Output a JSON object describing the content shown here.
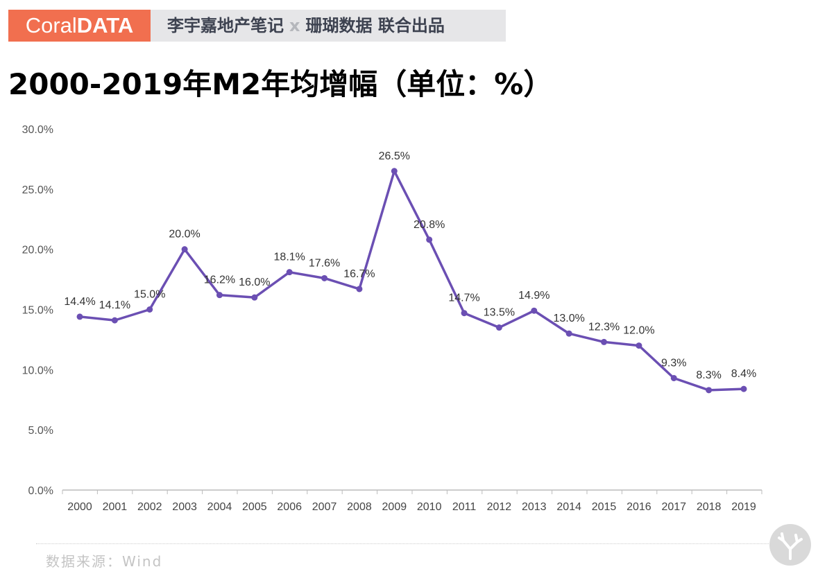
{
  "header": {
    "brand_light": "Coral",
    "brand_bold": "DATA",
    "partner_left": "李宇嘉地产笔记",
    "separator": "x",
    "partner_right": "珊瑚数据 联合出品"
  },
  "footer": {
    "source": "数据来源：Wind"
  },
  "colors": {
    "line": "#6b4fb3",
    "brand": "#f16f4f",
    "banner": "#e6e6e8"
  },
  "chart_data": {
    "type": "line",
    "title": "2000-2019年M2年均增幅（单位：%）",
    "categories": [
      "2000",
      "2001",
      "2002",
      "2003",
      "2004",
      "2005",
      "2006",
      "2007",
      "2008",
      "2009",
      "2010",
      "2011",
      "2012",
      "2013",
      "2014",
      "2015",
      "2016",
      "2017",
      "2018",
      "2019"
    ],
    "values": [
      14.4,
      14.1,
      15.0,
      20.0,
      16.2,
      16.0,
      18.1,
      17.6,
      16.7,
      26.5,
      20.8,
      14.7,
      13.5,
      14.9,
      13.0,
      12.3,
      12.0,
      9.3,
      8.3,
      8.4
    ],
    "data_labels": [
      "14.4%",
      "14.1%",
      "15.0%",
      "20.0%",
      "16.2%",
      "16.0%",
      "18.1%",
      "17.6%",
      "16.7%",
      "26.5%",
      "20.8%",
      "14.7%",
      "13.5%",
      "14.9%",
      "13.0%",
      "12.3%",
      "12.0%",
      "9.3%",
      "8.3%",
      "8.4%"
    ],
    "ylim": [
      0,
      30
    ],
    "yticks": [
      "0.0%",
      "5.0%",
      "10.0%",
      "15.0%",
      "20.0%",
      "25.0%",
      "30.0%"
    ],
    "grid": false,
    "legend": "none"
  }
}
